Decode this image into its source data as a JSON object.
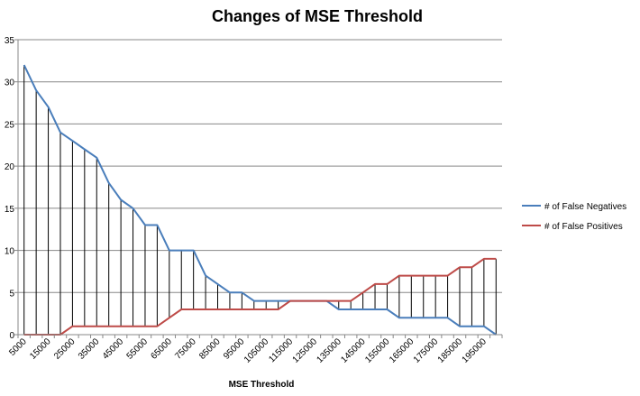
{
  "chart_data": {
    "type": "line",
    "title": "Changes of MSE Threshold",
    "xlabel": "MSE Threshold",
    "ylabel": "",
    "ylim": [
      0,
      35
    ],
    "yticks": [
      0,
      5,
      10,
      15,
      20,
      25,
      30,
      35
    ],
    "grid": true,
    "legend_position": "right",
    "x": [
      5000,
      10000,
      15000,
      20000,
      25000,
      30000,
      35000,
      40000,
      45000,
      50000,
      55000,
      60000,
      65000,
      70000,
      75000,
      80000,
      85000,
      90000,
      95000,
      100000,
      105000,
      110000,
      115000,
      120000,
      125000,
      130000,
      135000,
      140000,
      145000,
      150000,
      155000,
      160000,
      165000,
      170000,
      175000,
      180000,
      185000,
      190000,
      195000,
      200000
    ],
    "x_tick_labels": [
      "5000",
      "15000",
      "25000",
      "35000",
      "45000",
      "55000",
      "65000",
      "75000",
      "85000",
      "95000",
      "105000",
      "115000",
      "125000",
      "135000",
      "145000",
      "155000",
      "165000",
      "175000",
      "185000",
      "195000"
    ],
    "series": [
      {
        "name": "# of False Negatives",
        "color": "#4a7ebb",
        "values": [
          32,
          29,
          27,
          24,
          23,
          22,
          21,
          18,
          16,
          15,
          13,
          13,
          10,
          10,
          10,
          7,
          6,
          5,
          5,
          4,
          4,
          4,
          4,
          4,
          4,
          4,
          3,
          3,
          3,
          3,
          3,
          2,
          2,
          2,
          2,
          2,
          1,
          1,
          1,
          0
        ]
      },
      {
        "name": "# of False Positives",
        "color": "#be4b48",
        "values": [
          0,
          0,
          0,
          0,
          1,
          1,
          1,
          1,
          1,
          1,
          1,
          1,
          2,
          3,
          3,
          3,
          3,
          3,
          3,
          3,
          3,
          3,
          4,
          4,
          4,
          4,
          4,
          4,
          5,
          6,
          6,
          7,
          7,
          7,
          7,
          7,
          8,
          8,
          9,
          9
        ]
      }
    ]
  }
}
